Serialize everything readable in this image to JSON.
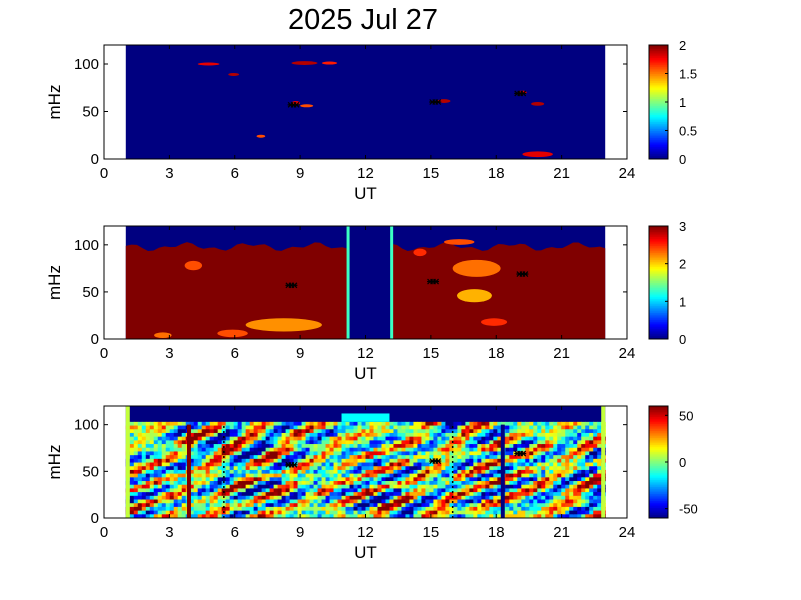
{
  "figure": {
    "title": "2025 Jul 27"
  },
  "chart_data": [
    {
      "type": "heatmap",
      "name": "panel-1",
      "xlabel": "UT",
      "ylabel": "mHz",
      "xlim": [
        0,
        24
      ],
      "ylim": [
        0,
        120
      ],
      "xticks": [
        0,
        3,
        6,
        9,
        12,
        15,
        18,
        21,
        24
      ],
      "yticks": [
        0,
        50,
        100
      ],
      "data_x_range": [
        1,
        23
      ],
      "colorbar": {
        "min": 0,
        "max": 2,
        "ticks": [
          0,
          0.5,
          1,
          1.5,
          2
        ],
        "tick_labels": [
          "0",
          "0.5",
          "1",
          "1.5",
          "2"
        ]
      },
      "background_value": 0,
      "patches": [
        {
          "x": 4.3,
          "y": 100,
          "w": 1.0,
          "h": 3,
          "v": 1.8
        },
        {
          "x": 5.7,
          "y": 89,
          "w": 0.5,
          "h": 3,
          "v": 1.9
        },
        {
          "x": 8.6,
          "y": 101,
          "w": 1.2,
          "h": 4,
          "v": 1.9
        },
        {
          "x": 10.0,
          "y": 101,
          "w": 0.7,
          "h": 3,
          "v": 1.7
        },
        {
          "x": 8.6,
          "y": 59,
          "w": 0.4,
          "h": 4,
          "v": 1.8
        },
        {
          "x": 9.0,
          "y": 56,
          "w": 0.6,
          "h": 3,
          "v": 1.6
        },
        {
          "x": 7.0,
          "y": 24,
          "w": 0.4,
          "h": 3,
          "v": 1.6
        },
        {
          "x": 15.3,
          "y": 61,
          "w": 0.6,
          "h": 4,
          "v": 1.9
        },
        {
          "x": 19.0,
          "y": 70,
          "w": 0.4,
          "h": 4,
          "v": 1.8
        },
        {
          "x": 19.6,
          "y": 58,
          "w": 0.6,
          "h": 4,
          "v": 1.9
        },
        {
          "x": 19.2,
          "y": 5,
          "w": 1.4,
          "h": 6,
          "v": 1.8
        }
      ],
      "markers": [
        {
          "x": 8.7,
          "y": 57
        },
        {
          "x": 15.2,
          "y": 60
        },
        {
          "x": 19.1,
          "y": 69
        }
      ]
    },
    {
      "type": "heatmap",
      "name": "panel-2",
      "xlabel": "UT",
      "ylabel": "mHz",
      "xlim": [
        0,
        24
      ],
      "ylim": [
        0,
        120
      ],
      "xticks": [
        0,
        3,
        6,
        9,
        12,
        15,
        18,
        21,
        24
      ],
      "yticks": [
        0,
        50,
        100
      ],
      "data_x_range": [
        1,
        23
      ],
      "colorbar": {
        "min": 0,
        "max": 3,
        "ticks": [
          0,
          1,
          2,
          3
        ],
        "tick_labels": [
          "0",
          "1",
          "2",
          "3"
        ]
      },
      "background_value": 0,
      "fill_value": 3,
      "fill_top": 103,
      "gaps": [
        {
          "x0": 11.2,
          "x1": 13.2
        }
      ],
      "patches": [
        {
          "x": 3.7,
          "y": 78,
          "w": 0.8,
          "h": 10,
          "v": 2.4
        },
        {
          "x": 6.5,
          "y": 15,
          "w": 3.5,
          "h": 14,
          "v": 2.2
        },
        {
          "x": 5.2,
          "y": 6,
          "w": 1.4,
          "h": 8,
          "v": 2.4
        },
        {
          "x": 2.3,
          "y": 4,
          "w": 0.8,
          "h": 6,
          "v": 2.3
        },
        {
          "x": 16.0,
          "y": 75,
          "w": 2.2,
          "h": 18,
          "v": 2.3
        },
        {
          "x": 16.2,
          "y": 46,
          "w": 1.6,
          "h": 14,
          "v": 2.1
        },
        {
          "x": 15.6,
          "y": 103,
          "w": 1.4,
          "h": 6,
          "v": 2.4
        },
        {
          "x": 17.3,
          "y": 18,
          "w": 1.2,
          "h": 8,
          "v": 2.5
        },
        {
          "x": 14.2,
          "y": 92,
          "w": 0.6,
          "h": 8,
          "v": 2.5
        }
      ],
      "markers": [
        {
          "x": 8.6,
          "y": 57
        },
        {
          "x": 15.1,
          "y": 61
        },
        {
          "x": 19.2,
          "y": 69
        }
      ]
    },
    {
      "type": "heatmap",
      "name": "panel-3",
      "xlabel": "UT",
      "ylabel": "mHz",
      "xlim": [
        0,
        24
      ],
      "ylim": [
        0,
        120
      ],
      "xticks": [
        0,
        3,
        6,
        9,
        12,
        15,
        18,
        21,
        24
      ],
      "yticks": [
        0,
        50,
        100
      ],
      "data_x_range": [
        1,
        23
      ],
      "colorbar": {
        "min": -60,
        "max": 60,
        "ticks": [
          -50,
          0,
          50
        ],
        "tick_labels": [
          "-50",
          "0",
          "50"
        ]
      },
      "background_value": -60,
      "fill_top": 103,
      "edge_value": 8,
      "noise_amplitude": 55,
      "vertical_lines": [
        {
          "x": 3.9,
          "y0": 0,
          "y1": 100,
          "style": "solid",
          "value": 60
        },
        {
          "x": 18.3,
          "y0": 0,
          "y1": 100,
          "style": "solid",
          "value": -60
        },
        {
          "x": 5.5,
          "y0": 0,
          "y1": 100,
          "style": "dotted",
          "value": -60
        },
        {
          "x": 16.0,
          "y0": 0,
          "y1": 100,
          "style": "dotted",
          "value": -60
        }
      ],
      "markers": [
        {
          "x": 8.6,
          "y": 57
        },
        {
          "x": 15.2,
          "y": 61
        },
        {
          "x": 19.1,
          "y": 69
        }
      ]
    }
  ]
}
